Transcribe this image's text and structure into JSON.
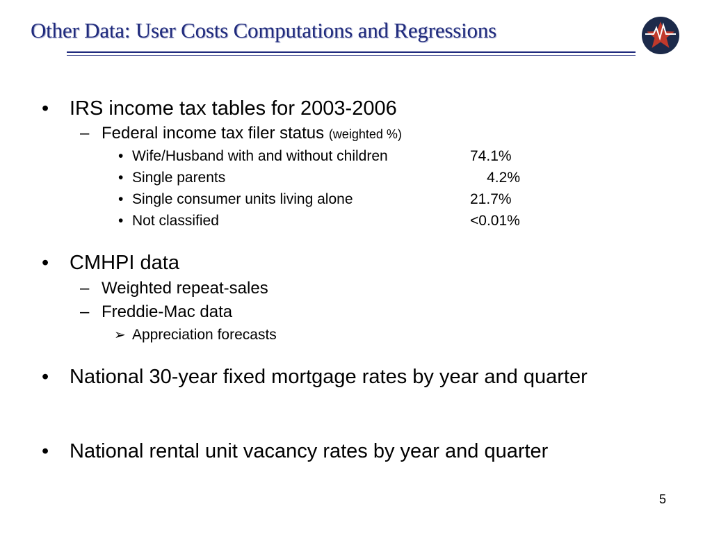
{
  "slide": {
    "title": "Other Data: User Costs Computations and Regressions",
    "logo_icon": "star-shield-icon",
    "page_number": "5",
    "colors": {
      "title": "#1f2a7c",
      "logo_navy": "#1c2a4a",
      "logo_red": "#c0392b"
    }
  },
  "sections": {
    "irs": {
      "heading": "IRS income tax tables for 2003-2006",
      "sub": {
        "label": "Federal income tax filer status",
        "label_note": "(weighted %)",
        "items": [
          {
            "label": "Wife/Husband with and without children",
            "value": "74.1%"
          },
          {
            "label": "Single parents",
            "value": "4.2%"
          },
          {
            "label": "Single consumer units living alone",
            "value": "21.7%"
          },
          {
            "label": "Not classified",
            "value": "<0.01%"
          }
        ]
      }
    },
    "cmhpi": {
      "heading": "CMHPI data",
      "sub": [
        {
          "label": "Weighted repeat-sales"
        },
        {
          "label": "Freddie-Mac data",
          "items": [
            "Appreciation forecasts"
          ]
        }
      ]
    },
    "mortgage": {
      "heading": "National 30-year fixed mortgage rates by year and quarter"
    },
    "vacancy": {
      "heading": "National rental unit vacancy rates by year and quarter"
    }
  }
}
